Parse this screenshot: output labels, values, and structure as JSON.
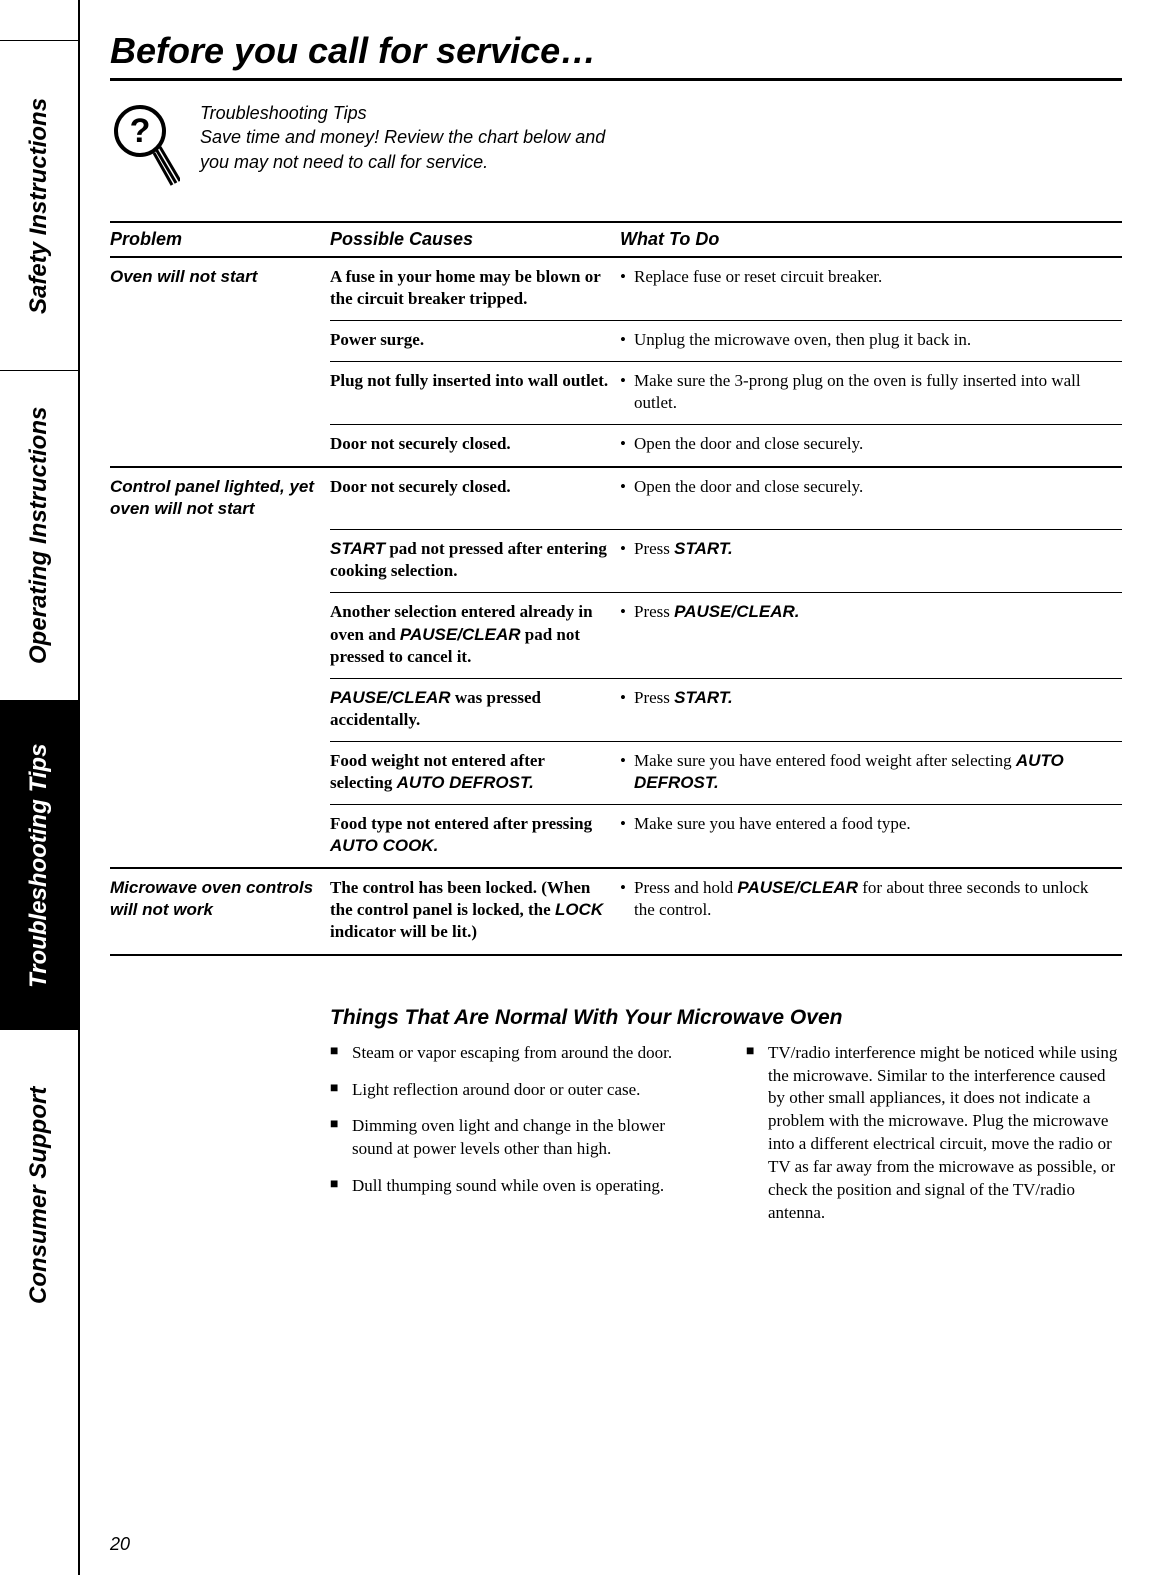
{
  "page": {
    "title": "Before you call for service…",
    "pageNumber": "20"
  },
  "sideTabs": [
    {
      "label": "Safety Instructions",
      "active": false
    },
    {
      "label": "Operating Instructions",
      "active": false
    },
    {
      "label": "Troubleshooting Tips",
      "active": true
    },
    {
      "label": "Consumer Support",
      "active": false
    }
  ],
  "intro": {
    "heading": "Troubleshooting Tips",
    "line1": "Save time and money! Review the chart below and",
    "line2": "you may not need to call for service."
  },
  "table": {
    "headers": {
      "problem": "Problem",
      "causes": "Possible Causes",
      "todo": "What To Do"
    },
    "groups": [
      {
        "problem": "Oven will not start",
        "rows": [
          {
            "cause": "A fuse in your home may be blown or the circuit breaker tripped.",
            "action": "Replace fuse or reset circuit breaker."
          },
          {
            "cause": "Power surge.",
            "action": "Unplug the microwave oven, then plug it back in."
          },
          {
            "cause": "Plug not fully inserted into wall outlet.",
            "action": "Make sure the 3-prong plug on the oven is fully inserted into wall outlet."
          },
          {
            "cause": "Door not securely closed.",
            "action": "Open the door and close securely."
          }
        ]
      },
      {
        "problem": "Control panel lighted, yet oven will not start",
        "rows": [
          {
            "cause": "Door not securely closed.",
            "action": "Open the door and close securely."
          },
          {
            "causeHtml": "<span class='ital'>START</span> pad not pressed after entering cooking selection.",
            "actionHtml": "Press <span class='ital'>START.</span>"
          },
          {
            "causeHtml": "Another selection entered already in oven and <span class='ital'>PAUSE/CLEAR</span> pad not pressed to cancel it.",
            "actionHtml": "Press <span class='ital'>PAUSE/CLEAR.</span>"
          },
          {
            "causeHtml": "<span class='ital'>PAUSE/CLEAR</span> was pressed accidentally.",
            "actionHtml": "Press <span class='ital'>START.</span>"
          },
          {
            "causeHtml": "Food weight not entered after selecting <span class='ital'>AUTO DEFROST.</span>",
            "actionHtml": "Make sure you have entered food weight after selecting <span class='ital'>AUTO DEFROST.</span>"
          },
          {
            "causeHtml": "Food type not entered after pressing <span class='ital'>AUTO COOK.</span>",
            "action": "Make sure you have entered a food type."
          }
        ]
      },
      {
        "problem": "Microwave oven controls will not work",
        "rows": [
          {
            "causeHtml": "The control has been locked. (When the control panel is locked, the <span class='ital'>LOCK</span> indicator will be lit.)",
            "actionHtml": "Press and hold <span class='ital'>PAUSE/CLEAR</span> for about three seconds to unlock the control."
          }
        ]
      }
    ]
  },
  "normal": {
    "title": "Things That Are Normal With Your Microwave Oven",
    "left": [
      "Steam or vapor escaping from around the door.",
      "Light reflection around door or outer case.",
      "Dimming oven light and change in the blower sound at power levels other than high.",
      "Dull thumping sound while oven is operating."
    ],
    "right": [
      "TV/radio interference might be noticed while using the microwave. Similar to the interference caused by other small appliances, it does not indicate a problem with the microwave. Plug the microwave into a different electrical circuit, move the radio or TV as far away from the microwave as possible, or check the position and signal of the TV/radio antenna."
    ]
  },
  "style": {
    "bg": "#ffffff",
    "text": "#000000",
    "tabActiveBg": "#000000",
    "tabActiveText": "#ffffff"
  }
}
